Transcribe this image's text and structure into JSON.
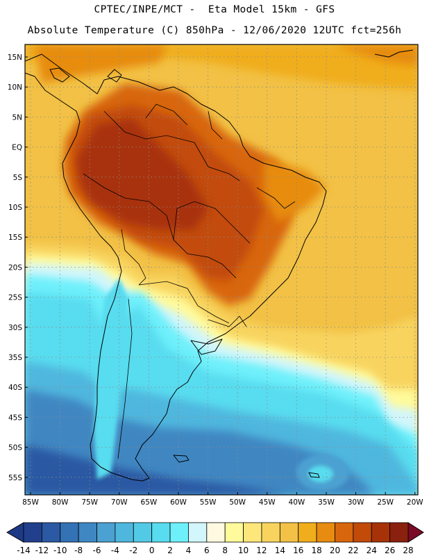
{
  "header": {
    "title_line1": "CPTEC/INPE/MCT -  Eta Model 15km - GFS",
    "title_line2": "Absolute Temperature (C) 850hPa - 12/06/2020 12UTC fct=256h"
  },
  "map": {
    "region": "South America",
    "lat_labels": [
      "15N",
      "10N",
      "5N",
      "EQ",
      "5S",
      "10S",
      "15S",
      "20S",
      "25S",
      "30S",
      "35S",
      "40S",
      "45S",
      "50S",
      "55S"
    ],
    "lon_labels": [
      "85W",
      "80W",
      "75W",
      "70W",
      "65W",
      "60W",
      "55W",
      "50W",
      "45W",
      "40W",
      "35W",
      "30W",
      "25W",
      "20W"
    ]
  },
  "colorbar": {
    "tick_labels": [
      "-14",
      "-12",
      "-10",
      "-8",
      "-6",
      "-4",
      "-2",
      "0",
      "2",
      "4",
      "6",
      "8",
      "10",
      "12",
      "14",
      "16",
      "18",
      "20",
      "22",
      "24",
      "26",
      "28"
    ],
    "colors": [
      "#213f8c",
      "#2b59a3",
      "#3472b6",
      "#3f87c2",
      "#4ba1d1",
      "#4fb7de",
      "#52cae6",
      "#58dcef",
      "#6ef0fb",
      "#d2f6fb",
      "#fff9e1",
      "#fffa9b",
      "#fde77a",
      "#f8d45f",
      "#f2c145",
      "#f0ad1c",
      "#e78c10",
      "#d8660c",
      "#c24b09",
      "#a83208",
      "#8a200e"
    ],
    "under_color": "#1e3a87",
    "over_color": "#7a0a26"
  }
}
